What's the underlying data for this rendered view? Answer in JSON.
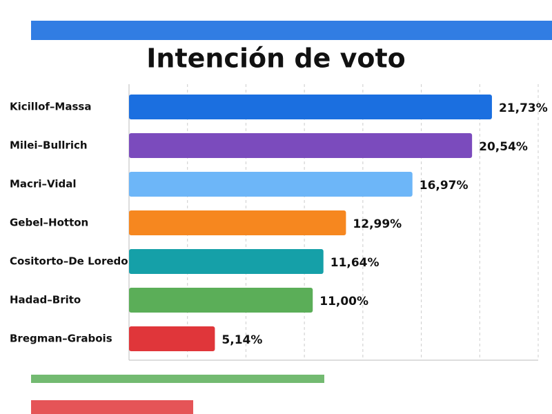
{
  "chart_data": {
    "type": "bar",
    "orientation": "horizontal",
    "title": "Intención de voto",
    "categories": [
      "Kicillof–Massa",
      "Milei–Bullrich",
      "Macri–Vidal",
      "Gebel–Hotton",
      "Cositorto–De Loredo",
      "Hadad–Brito",
      "Bregman–Grabois"
    ],
    "values": [
      21.73,
      20.54,
      16.97,
      12.99,
      11.64,
      11.0,
      5.14
    ],
    "value_labels": [
      "21,73%",
      "20,54%",
      "16,97%",
      "12,99%",
      "11,64%",
      "11,00%",
      "5,14%"
    ],
    "colors": [
      "#1b6fe0",
      "#7b4bbd",
      "#6db6f8",
      "#f6871f",
      "#15a0a8",
      "#5bae58",
      "#e0363a"
    ],
    "xlim": [
      0,
      24.5
    ],
    "xticks": [
      3.5,
      7,
      10.5,
      14,
      17.5,
      21,
      24.5
    ],
    "grid": true
  }
}
